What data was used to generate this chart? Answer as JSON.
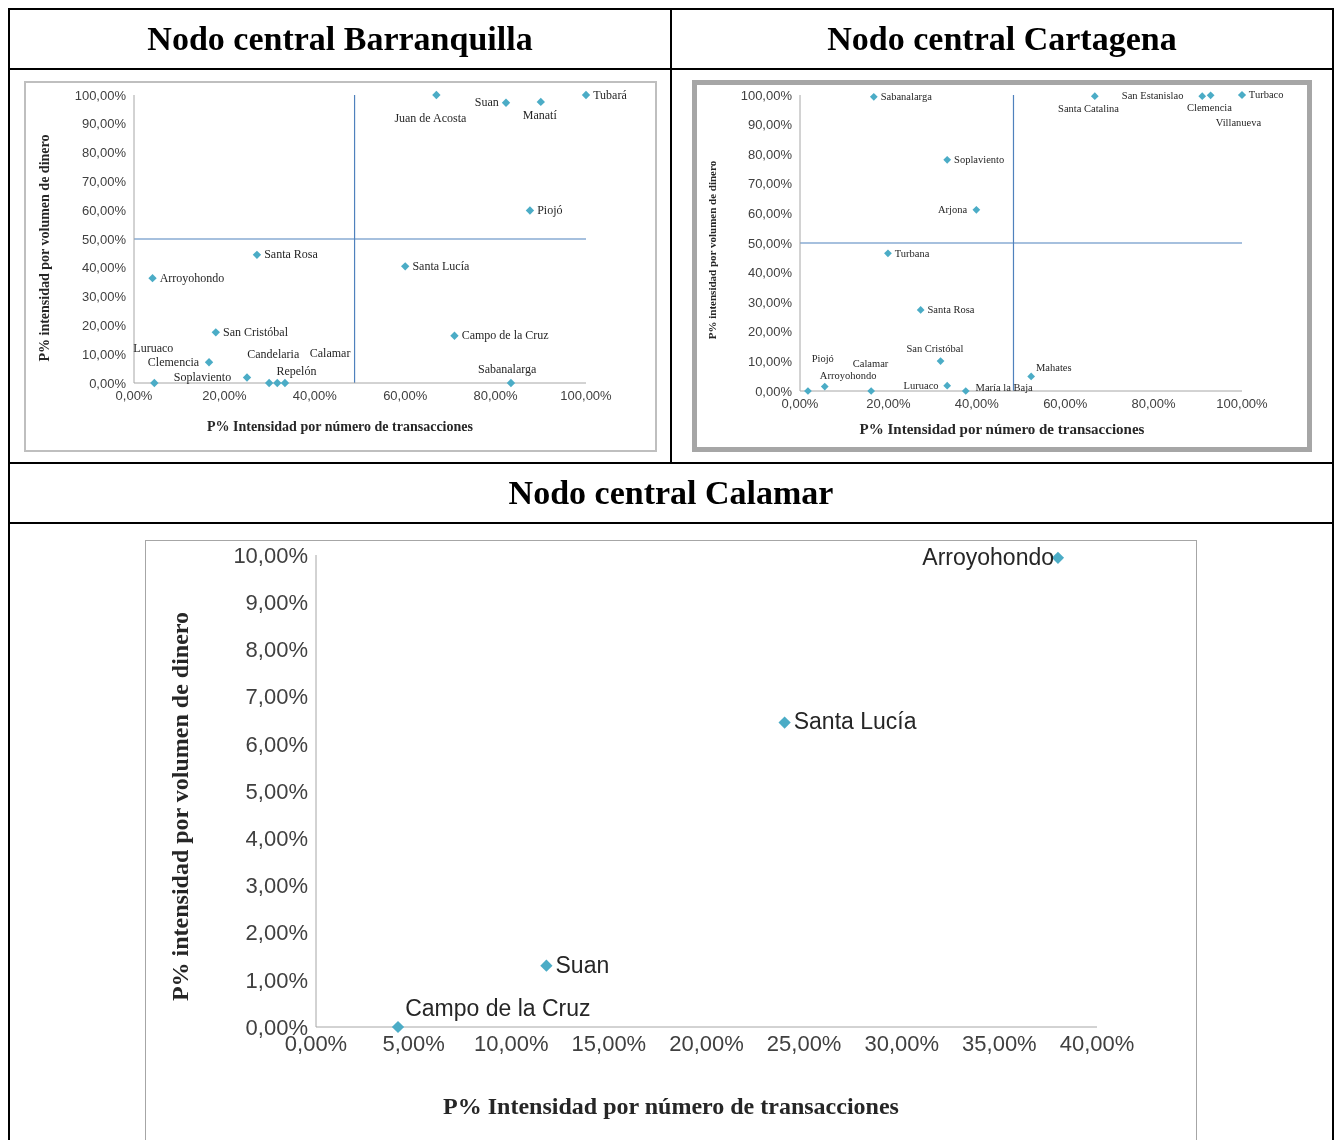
{
  "chart_data": [
    {
      "type": "scatter",
      "title": "Nodo central Barranquilla",
      "xlabel": "P% Intensidad por número de transacciones",
      "ylabel": "P% intensidad por volumen de dinero",
      "marker": "diamond",
      "color": "#4bacc6",
      "x": [
        66.9,
        82.3,
        90,
        100,
        87.6,
        27.2,
        60,
        4.1,
        70.9,
        18.1,
        16.6,
        25,
        4.5,
        29.9,
        31.7,
        33.4,
        83.4
      ],
      "values": [
        100,
        97.3,
        97.6,
        100,
        59.9,
        44.5,
        40.5,
        36.4,
        16.4,
        17.6,
        7.2,
        1.9,
        0,
        0,
        0,
        0,
        0
      ],
      "value_labels": [
        "Juan de Acosta",
        "Suan",
        "Manatí",
        "Tubará",
        "Piojó",
        "Santa Rosa",
        "Santa Lucía",
        "Arroyohondo",
        "Campo de la Cruz",
        "San Cristóbal",
        "Clemencia",
        "Soplaviento",
        "Luruaco",
        "Repelón",
        "Candelaria",
        "Calamar",
        "Sabanalarga"
      ],
      "xlim": [
        0,
        100
      ],
      "ylim": [
        0,
        100
      ],
      "xticks": [
        {
          "value": 0,
          "label": "0,00%"
        },
        {
          "value": 20,
          "label": "20,00%"
        },
        {
          "value": 40,
          "label": "40,00%"
        },
        {
          "value": 60,
          "label": "60,00%"
        },
        {
          "value": 80,
          "label": "80,00%"
        },
        {
          "value": 100,
          "label": "100,00%"
        }
      ],
      "yticks": [
        {
          "value": 0,
          "label": "0,00%"
        },
        {
          "value": 10,
          "label": "10,00%"
        },
        {
          "value": 20,
          "label": "20,00%"
        },
        {
          "value": 30,
          "label": "30,00%"
        },
        {
          "value": 40,
          "label": "40,00%"
        },
        {
          "value": 50,
          "label": "50,00%"
        },
        {
          "value": 60,
          "label": "60,00%"
        },
        {
          "value": 70,
          "label": "70,00%"
        },
        {
          "value": 80,
          "label": "80,00%"
        },
        {
          "value": 90,
          "label": "90,00%"
        },
        {
          "value": 100,
          "label": "100,00%"
        }
      ],
      "ref_lines": [
        {
          "axis": "x",
          "value": 48.8,
          "color": "#4f81bd"
        },
        {
          "axis": "y",
          "value": 50,
          "color": "#4f81bd"
        }
      ]
    },
    {
      "type": "scatter",
      "title": "Nodo central Cartagena",
      "xlabel": "P% Intensidad por número de transacciones",
      "ylabel": "P% intensidad por volumen de dinero",
      "marker": "diamond",
      "color": "#4bacc6",
      "x": [
        16.7,
        66.7,
        91.0,
        92.9,
        100,
        100,
        33.3,
        39.9,
        19.9,
        27.3,
        31.8,
        1.8,
        5.6,
        16.1,
        33.3,
        37.5,
        52.3
      ],
      "values": [
        99.4,
        99.6,
        99.6,
        99.9,
        100,
        100,
        78.1,
        61.2,
        46.5,
        27.4,
        10.1,
        0,
        1.5,
        0,
        1.8,
        0,
        4.9
      ],
      "value_labels": [
        "Sabanalarga",
        "Santa Catalina",
        "San Estanislao",
        "Clemencia",
        "Turbaco",
        "Villanueva",
        "Soplaviento",
        "Arjona",
        "Turbana",
        "Santa Rosa",
        "San Cristóbal",
        "Arroyohondo",
        "Piojó",
        "Calamar",
        "Luruaco",
        "María la Baja",
        "Mahates"
      ],
      "xlim": [
        0,
        100
      ],
      "ylim": [
        0,
        100
      ],
      "xticks": [
        {
          "value": 0,
          "label": "0,00%"
        },
        {
          "value": 20,
          "label": "20,00%"
        },
        {
          "value": 40,
          "label": "40,00%"
        },
        {
          "value": 60,
          "label": "60,00%"
        },
        {
          "value": 80,
          "label": "80,00%"
        },
        {
          "value": 100,
          "label": "100,00%"
        }
      ],
      "yticks": [
        {
          "value": 0,
          "label": "0,00%"
        },
        {
          "value": 10,
          "label": "10,00%"
        },
        {
          "value": 20,
          "label": "20,00%"
        },
        {
          "value": 30,
          "label": "30,00%"
        },
        {
          "value": 40,
          "label": "40,00%"
        },
        {
          "value": 50,
          "label": "50,00%"
        },
        {
          "value": 60,
          "label": "60,00%"
        },
        {
          "value": 70,
          "label": "70,00%"
        },
        {
          "value": 80,
          "label": "80,00%"
        },
        {
          "value": 90,
          "label": "90,00%"
        },
        {
          "value": 100,
          "label": "100,00%"
        }
      ],
      "ref_lines": [
        {
          "axis": "x",
          "value": 48.3,
          "color": "#4f81bd"
        },
        {
          "axis": "y",
          "value": 50,
          "color": "#4f81bd"
        }
      ]
    },
    {
      "type": "scatter",
      "title": "Nodo central Calamar",
      "xlabel": "P% Intensidad por número de transacciones",
      "ylabel": "P% intensidad por volumen de dinero",
      "marker": "diamond",
      "color": "#4bacc6",
      "x": [
        38.0,
        24.0,
        11.8,
        4.2
      ],
      "values": [
        9.94,
        6.45,
        1.3,
        0
      ],
      "value_labels": [
        "Arroyohondo",
        "Santa Lucía",
        "Suan",
        "Campo de la Cruz"
      ],
      "xlim": [
        0,
        40
      ],
      "ylim": [
        0,
        10
      ],
      "xticks": [
        {
          "value": 0,
          "label": "0,00%"
        },
        {
          "value": 5,
          "label": "5,00%"
        },
        {
          "value": 10,
          "label": "10,00%"
        },
        {
          "value": 15,
          "label": "15,00%"
        },
        {
          "value": 20,
          "label": "20,00%"
        },
        {
          "value": 25,
          "label": "25,00%"
        },
        {
          "value": 30,
          "label": "30,00%"
        },
        {
          "value": 35,
          "label": "35,00%"
        },
        {
          "value": 40,
          "label": "40,00%"
        }
      ],
      "yticks": [
        {
          "value": 0,
          "label": "0,00%"
        },
        {
          "value": 1,
          "label": "1,00%"
        },
        {
          "value": 2,
          "label": "2,00%"
        },
        {
          "value": 3,
          "label": "3,00%"
        },
        {
          "value": 4,
          "label": "4,00%"
        },
        {
          "value": 5,
          "label": "5,00%"
        },
        {
          "value": 6,
          "label": "6,00%"
        },
        {
          "value": 7,
          "label": "7,00%"
        },
        {
          "value": 8,
          "label": "8,00%"
        },
        {
          "value": 9,
          "label": "9,00%"
        },
        {
          "value": 10,
          "label": "10,00%"
        }
      ]
    }
  ]
}
